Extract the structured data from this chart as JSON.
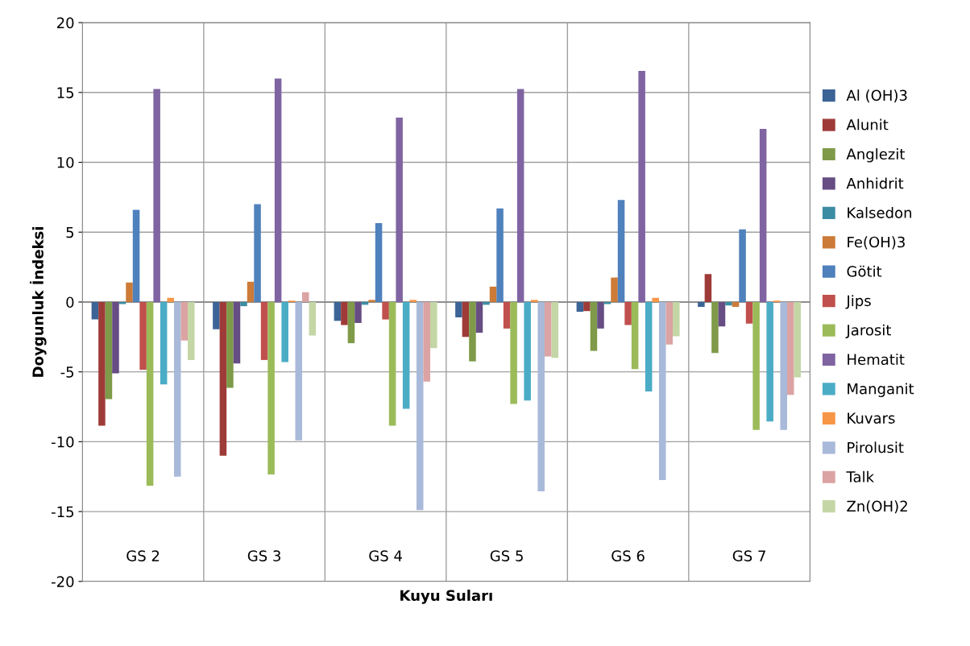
{
  "chart_data": {
    "type": "bar",
    "xlabel": "Kuyu Suları",
    "ylabel": "Doygunluk İndeksi",
    "categories": [
      "GS 2",
      "GS 3",
      "GS 4",
      "GS 5",
      "GS 6",
      "GS 7"
    ],
    "ylim": [
      -20,
      20
    ],
    "yticks": [
      -20,
      -15,
      -10,
      -5,
      0,
      5,
      10,
      15,
      20
    ],
    "grid": true,
    "legend": "right",
    "series": [
      {
        "name": "Al (OH)3",
        "color": "#3c6496",
        "values": [
          -1.25,
          -1.95,
          -1.35,
          -1.1,
          -0.7,
          -0.35
        ]
      },
      {
        "name": "Alunit",
        "color": "#9e3b38",
        "values": [
          -8.85,
          -11.0,
          -1.65,
          -2.5,
          -0.65,
          2.0
        ]
      },
      {
        "name": "Anglezit",
        "color": "#7f9a48",
        "values": [
          -6.95,
          -6.15,
          -2.95,
          -4.25,
          -3.5,
          -3.65
        ]
      },
      {
        "name": "Anhidrit",
        "color": "#664d84",
        "values": [
          -5.1,
          -4.4,
          -1.5,
          -2.2,
          -1.9,
          -1.75
        ]
      },
      {
        "name": "Kalsedon",
        "color": "#3c8da3",
        "values": [
          -0.15,
          -0.3,
          -0.2,
          -0.2,
          -0.15,
          -0.25
        ]
      },
      {
        "name": "Fe(OH)3",
        "color": "#cc7b38",
        "values": [
          1.4,
          1.45,
          0.15,
          1.1,
          1.75,
          -0.35
        ]
      },
      {
        "name": "Götit",
        "color": "#4f81bd",
        "values": [
          6.6,
          7.0,
          5.65,
          6.7,
          7.3,
          5.2
        ]
      },
      {
        "name": "Jips",
        "color": "#c0504d",
        "values": [
          -4.85,
          -4.15,
          -1.25,
          -1.9,
          -1.65,
          -1.55
        ]
      },
      {
        "name": "Jarosit",
        "color": "#9bbb59",
        "values": [
          -13.15,
          -12.35,
          -8.85,
          -7.3,
          -4.8,
          -9.15
        ]
      },
      {
        "name": "Hematit",
        "color": "#8064a2",
        "values": [
          15.25,
          16.0,
          13.2,
          15.25,
          16.55,
          12.4
        ]
      },
      {
        "name": "Manganit",
        "color": "#4bacc6",
        "values": [
          -5.9,
          -4.3,
          -7.65,
          -7.05,
          -6.4,
          -8.55
        ]
      },
      {
        "name": "Kuvars",
        "color": "#f79646",
        "values": [
          0.3,
          0.1,
          0.15,
          0.15,
          0.3,
          0.1
        ]
      },
      {
        "name": "Pirolusit",
        "color": "#a9b9d9",
        "values": [
          -12.5,
          -9.9,
          -14.9,
          -13.55,
          -12.75,
          -9.15
        ]
      },
      {
        "name": "Talk",
        "color": "#dba3a3",
        "values": [
          -2.75,
          0.7,
          -5.7,
          -3.9,
          -3.05,
          -6.65
        ]
      },
      {
        "name": "Zn(OH)2",
        "color": "#c4d6a5",
        "values": [
          -4.15,
          -2.4,
          -3.3,
          -4.0,
          -2.45,
          -5.4
        ]
      }
    ]
  }
}
